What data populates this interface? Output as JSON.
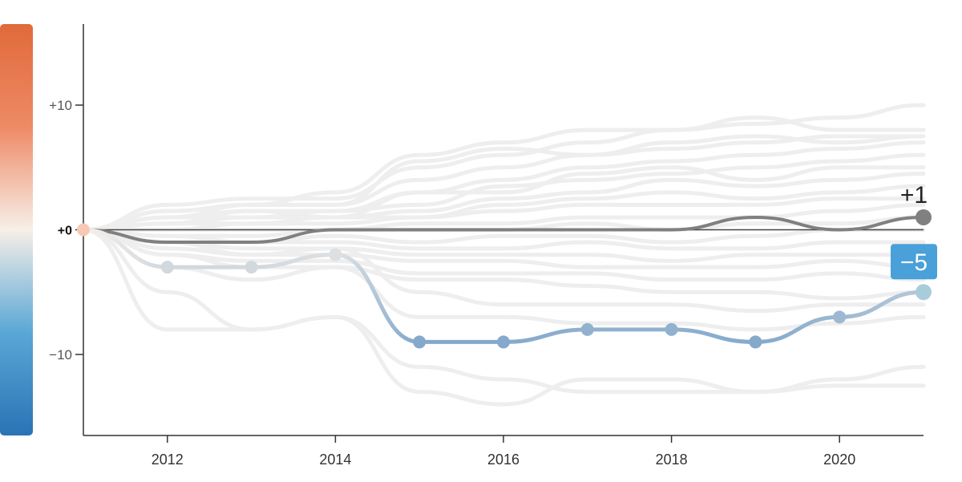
{
  "colors": {
    "highlight_grey": "#808080",
    "background_lines": "#eeeeee",
    "zero_line": "#444444",
    "axis": "#333333",
    "scale_top": "#e06a3a",
    "scale_mid": "#f7efe8",
    "scale_bottom": "#2a73b5",
    "blue_point": "#5aa7d6",
    "pale_blue_point": "#a9ccdb",
    "peach_point": "#f7c9b4",
    "label_blue_bg": "#4aa0d8"
  },
  "chart_data": {
    "type": "line",
    "x_range": [
      2011,
      2021
    ],
    "y_range": [
      -16.5,
      16.5
    ],
    "x_ticks": [
      "2012",
      "2014",
      "2016",
      "2018",
      "2020"
    ],
    "y_ticks": [
      {
        "value": 10,
        "label": "+10"
      },
      {
        "value": 0,
        "label": "+0"
      },
      {
        "value": -10,
        "label": "−10"
      }
    ],
    "color_scale": {
      "min": -16,
      "max": 16
    },
    "background_series": [
      [
        0,
        2,
        2.5,
        2.5,
        5,
        6,
        7,
        8,
        9,
        8,
        8
      ],
      [
        0,
        1.5,
        2,
        2,
        4,
        5,
        6,
        6.5,
        7,
        7.5,
        7.5
      ],
      [
        0,
        1,
        1.5,
        1.5,
        3,
        4,
        5,
        5.5,
        6,
        6.5,
        7
      ],
      [
        0,
        1,
        1,
        1.5,
        2,
        3.5,
        4,
        4.5,
        5,
        5.5,
        6
      ],
      [
        0,
        0.5,
        1,
        1,
        1.5,
        2.5,
        3,
        4,
        3.5,
        4,
        4.5
      ],
      [
        0,
        0.5,
        0.5,
        1,
        1,
        2,
        2.5,
        3,
        2.5,
        3,
        3.5
      ],
      [
        0,
        0,
        0.5,
        0.5,
        1,
        1.5,
        2,
        2,
        2,
        2.5,
        2.5
      ],
      [
        0,
        0,
        0,
        0,
        0.5,
        0.5,
        1,
        1,
        1,
        1.5,
        2
      ],
      [
        0,
        -0.5,
        -0.5,
        0,
        0,
        0,
        0.5,
        0,
        0.5,
        0.5,
        1
      ],
      [
        0,
        -0.5,
        -1,
        -0.5,
        -1,
        -0.5,
        -0.5,
        -1,
        -0.5,
        0,
        0
      ],
      [
        0,
        -1,
        -1,
        -1,
        -1.5,
        -1.5,
        -1,
        -1.5,
        -1.5,
        -1,
        -1
      ],
      [
        0,
        -1,
        -1.5,
        -1.5,
        -2,
        -2,
        -2,
        -2.5,
        -2,
        -2,
        -2
      ],
      [
        0,
        -1.5,
        -2,
        -2,
        -2.5,
        -2.5,
        -3,
        -3,
        -3,
        -2.5,
        -3
      ],
      [
        0,
        -2,
        -2.5,
        -2.5,
        -3.5,
        -3.5,
        -3.5,
        -4,
        -4,
        -3.5,
        -4
      ],
      [
        0,
        1.5,
        2,
        3,
        6,
        7,
        8,
        8,
        8.5,
        9,
        10
      ],
      [
        0,
        1,
        2,
        2,
        5.5,
        6.5,
        6,
        7,
        7.5,
        7,
        7.5
      ],
      [
        0,
        0.5,
        1.5,
        1,
        3,
        3,
        4.5,
        5,
        4,
        5,
        5
      ],
      [
        0,
        -2,
        -3,
        -3,
        -4,
        -4,
        -4.5,
        -5,
        -5,
        -5.5,
        -5
      ],
      [
        0,
        -5,
        -8,
        -7,
        -11,
        -12,
        -13,
        -13,
        -13,
        -12,
        -11
      ],
      [
        0,
        -8,
        -8,
        -7,
        -13,
        -14,
        -12,
        -12,
        -13,
        -12.5,
        -12.5
      ],
      [
        0,
        -3,
        -4,
        -3,
        -7,
        -7,
        -7.5,
        -7.5,
        -8,
        -7.5,
        -7
      ],
      [
        0,
        -1,
        -2,
        -1.5,
        -5,
        -6,
        -6,
        -6,
        -6.5,
        -6,
        -6
      ]
    ],
    "series": [
      {
        "values": [
          0,
          -3,
          -3,
          -2,
          -9,
          -9,
          -8,
          -8,
          -9,
          -7,
          -5
        ],
        "end_label": "−5",
        "end_label_style": "badge"
      },
      {
        "values": [
          0,
          -1,
          -1,
          0,
          0,
          0,
          0,
          0,
          1,
          0,
          1
        ],
        "end_label": "+1",
        "end_label_style": "text"
      }
    ]
  }
}
